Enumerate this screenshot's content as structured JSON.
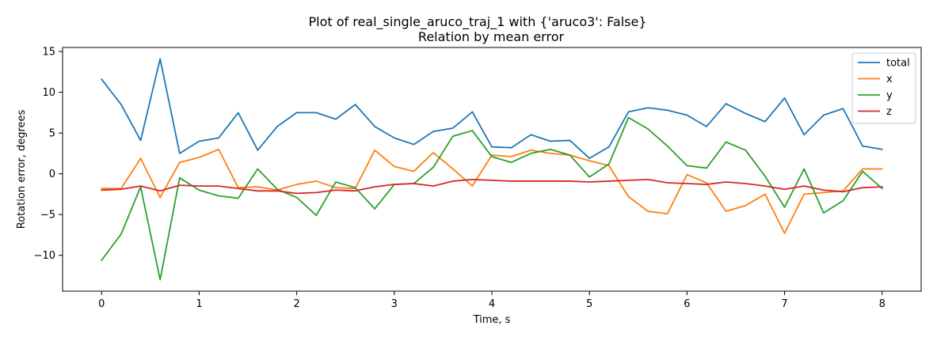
{
  "chart_data": {
    "type": "line",
    "title": "Plot of real_single_aruco_traj_1 with {'aruco3': False}",
    "subtitle": "Relation by mean error",
    "xlabel": "Time, s",
    "ylabel": "Rotation error, degrees",
    "xlim": [
      -0.4,
      8.4
    ],
    "ylim": [
      -14.4,
      15.5
    ],
    "x_ticks": [
      0,
      1,
      2,
      3,
      4,
      5,
      6,
      7,
      8
    ],
    "x_tick_labels": [
      "0",
      "1",
      "2",
      "3",
      "4",
      "5",
      "6",
      "7",
      "8"
    ],
    "y_ticks": [
      -10,
      -5,
      0,
      5,
      10,
      15
    ],
    "y_tick_labels": [
      "−10",
      "−5",
      "0",
      "5",
      "10",
      "15"
    ],
    "grid": false,
    "legend_position": "top-right",
    "x": [
      0,
      0.2,
      0.4,
      0.6,
      0.8,
      1.0,
      1.2,
      1.4,
      1.6,
      1.8,
      2.0,
      2.2,
      2.4,
      2.6,
      2.8,
      3.0,
      3.2,
      3.4,
      3.6,
      3.8,
      4.0,
      4.2,
      4.4,
      4.6,
      4.8,
      5.0,
      5.2,
      5.4,
      5.6,
      5.8,
      6.0,
      6.2,
      6.4,
      6.6,
      6.8,
      7.0,
      7.2,
      7.4,
      7.6,
      7.8,
      8.0
    ],
    "series": [
      {
        "name": "total",
        "color": "#1f77b4",
        "values": [
          11.6,
          8.5,
          4.1,
          14.1,
          2.5,
          4.0,
          4.4,
          7.5,
          2.9,
          5.8,
          7.5,
          7.5,
          6.7,
          8.5,
          5.8,
          4.4,
          3.6,
          5.2,
          5.6,
          7.6,
          3.3,
          3.2,
          4.8,
          4.0,
          4.1,
          1.9,
          3.3,
          7.6,
          8.1,
          7.8,
          7.2,
          5.8,
          8.6,
          7.4,
          6.4,
          9.3,
          4.8,
          7.2,
          8.0,
          3.4,
          3.0
        ]
      },
      {
        "name": "x",
        "color": "#ff7f0e",
        "values": [
          -1.8,
          -1.8,
          1.9,
          -2.9,
          1.4,
          2.0,
          3.0,
          -1.7,
          -1.6,
          -2.0,
          -1.3,
          -0.9,
          -1.7,
          -1.8,
          2.9,
          0.9,
          0.3,
          2.6,
          0.6,
          -1.5,
          2.3,
          2.1,
          2.9,
          2.5,
          2.3,
          1.6,
          1.0,
          -2.8,
          -4.6,
          -4.9,
          -0.1,
          -1.1,
          -4.6,
          -3.9,
          -2.5,
          -7.3,
          -2.5,
          -2.3,
          -2.1,
          0.6,
          0.6
        ]
      },
      {
        "name": "y",
        "color": "#2ca02c",
        "values": [
          -10.6,
          -7.4,
          -1.6,
          -13.0,
          -0.5,
          -2.0,
          -2.7,
          -3.0,
          0.6,
          -1.9,
          -2.9,
          -5.1,
          -1.0,
          -1.7,
          -4.3,
          -1.3,
          -1.2,
          0.8,
          4.6,
          5.3,
          2.1,
          1.4,
          2.5,
          3.0,
          2.3,
          -0.4,
          1.2,
          6.9,
          5.5,
          3.4,
          1.0,
          0.7,
          3.9,
          2.9,
          -0.3,
          -4.1,
          0.6,
          -4.8,
          -3.3,
          0.3,
          -1.8
        ]
      },
      {
        "name": "z",
        "color": "#d62728",
        "values": [
          -2.0,
          -1.9,
          -1.5,
          -2.1,
          -1.4,
          -1.5,
          -1.5,
          -1.8,
          -2.1,
          -2.1,
          -2.4,
          -2.3,
          -2.0,
          -2.1,
          -1.6,
          -1.3,
          -1.2,
          -1.5,
          -0.9,
          -0.7,
          -0.8,
          -0.9,
          -0.9,
          -0.9,
          -0.9,
          -1.0,
          -0.9,
          -0.8,
          -0.7,
          -1.1,
          -1.2,
          -1.3,
          -1.0,
          -1.2,
          -1.5,
          -1.9,
          -1.5,
          -2.0,
          -2.2,
          -1.7,
          -1.6
        ]
      }
    ]
  }
}
